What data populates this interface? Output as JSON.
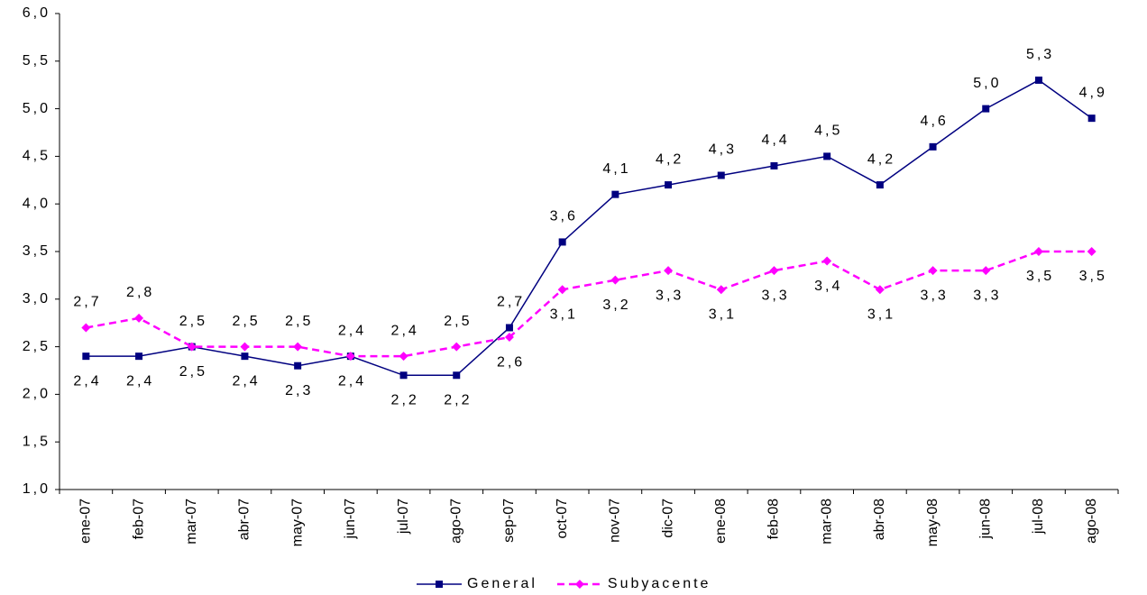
{
  "chart_data": {
    "type": "line",
    "categories": [
      "ene-07",
      "feb-07",
      "mar-07",
      "abr-07",
      "may-07",
      "jun-07",
      "jul-07",
      "ago-07",
      "sep-07",
      "oct-07",
      "nov-07",
      "dic-07",
      "ene-08",
      "feb-08",
      "mar-08",
      "abr-08",
      "may-08",
      "jun-08",
      "jul-08",
      "ago-08"
    ],
    "series": [
      {
        "name": "General",
        "color": "#000080",
        "marker": "square",
        "dashed": false,
        "values": [
          2.4,
          2.4,
          2.5,
          2.4,
          2.3,
          2.4,
          2.2,
          2.2,
          2.7,
          3.6,
          4.1,
          4.2,
          4.3,
          4.4,
          4.5,
          4.2,
          4.6,
          5.0,
          5.3,
          4.9
        ],
        "value_labels": [
          "2,4",
          "2,4",
          "2,5",
          "2,4",
          "2,3",
          "2,4",
          "2,2",
          "2,2",
          "2,7",
          "3,6",
          "4,1",
          "4,2",
          "4,3",
          "4,4",
          "4,5",
          "4,2",
          "4,6",
          "5,0",
          "5,3",
          "4,9"
        ]
      },
      {
        "name": "Subyacente",
        "color": "#ff00ff",
        "marker": "diamond",
        "dashed": true,
        "values": [
          2.7,
          2.8,
          2.5,
          2.5,
          2.5,
          2.4,
          2.4,
          2.5,
          2.6,
          3.1,
          3.2,
          3.3,
          3.1,
          3.3,
          3.4,
          3.1,
          3.3,
          3.3,
          3.5,
          3.5
        ],
        "value_labels": [
          "2,7",
          "2,8",
          "2,5",
          "2,5",
          "2,5",
          "2,4",
          "2,4",
          "2,5",
          "2,6",
          "3,1",
          "3,2",
          "3,3",
          "3,1",
          "3,3",
          "3,4",
          "3,1",
          "3,3",
          "3,3",
          "3,5",
          "3,5"
        ]
      }
    ],
    "ylim": [
      1.0,
      6.0
    ],
    "yticks": [
      {
        "value": 1.0,
        "label": "1,0"
      },
      {
        "value": 1.5,
        "label": "1,5"
      },
      {
        "value": 2.0,
        "label": "2,0"
      },
      {
        "value": 2.5,
        "label": "2,5"
      },
      {
        "value": 3.0,
        "label": "3,0"
      },
      {
        "value": 3.5,
        "label": "3,5"
      },
      {
        "value": 4.0,
        "label": "4,0"
      },
      {
        "value": 4.5,
        "label": "4,5"
      },
      {
        "value": 5.0,
        "label": "5,0"
      },
      {
        "value": 5.5,
        "label": "5,5"
      },
      {
        "value": 6.0,
        "label": "6,0"
      }
    ],
    "grid": false,
    "legend": "bottom"
  }
}
